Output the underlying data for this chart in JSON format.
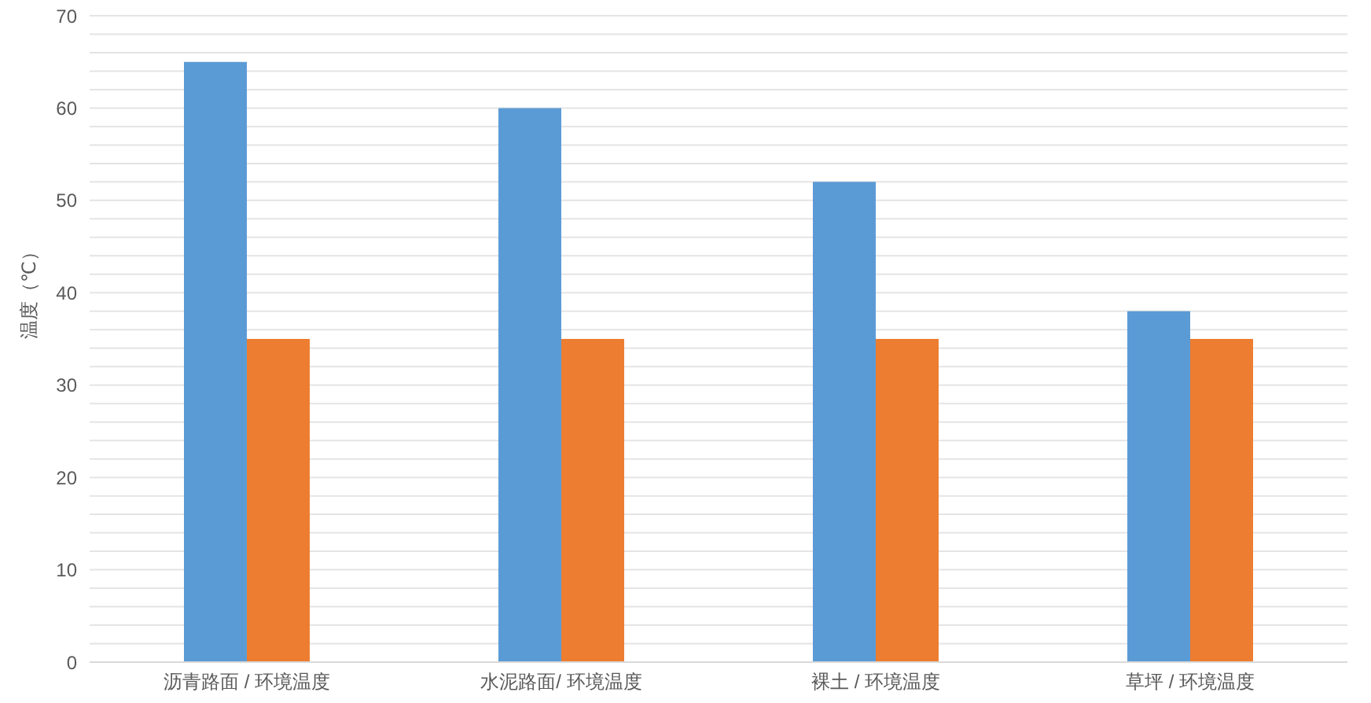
{
  "chart_data": {
    "type": "bar",
    "ylabel": "温度（℃）",
    "categories": [
      "沥青路面 / 环境温度",
      "水泥路面/ 环境温度",
      "裸土 / 环境温度",
      "草坪 / 环境温度"
    ],
    "series": [
      {
        "color": "#5b9bd5",
        "values": [
          65,
          60,
          52,
          38
        ]
      },
      {
        "color": "#ed7d31",
        "values": [
          35,
          35,
          35,
          35
        ]
      }
    ],
    "ylim": [
      0,
      70
    ],
    "yticks": [
      0,
      {
        "value": 2,
        "label": null
      },
      {
        "value": 4,
        "label": null
      },
      {
        "value": 6,
        "label": null
      },
      {
        "value": 8,
        "label": null
      },
      10,
      {
        "value": 12,
        "label": null
      },
      {
        "value": 14,
        "label": null
      },
      {
        "value": 16,
        "label": null
      },
      {
        "value": 18,
        "label": null
      },
      20,
      {
        "value": 22,
        "label": null
      },
      {
        "value": 24,
        "label": null
      },
      {
        "value": 26,
        "label": null
      },
      {
        "value": 28,
        "label": null
      },
      30,
      {
        "value": 32,
        "label": null
      },
      {
        "value": 34,
        "label": null
      },
      {
        "value": 36,
        "label": null
      },
      {
        "value": 38,
        "label": null
      },
      40,
      {
        "value": 42,
        "label": null
      },
      {
        "value": 44,
        "label": null
      },
      {
        "value": 46,
        "label": null
      },
      {
        "value": 48,
        "label": null
      },
      50,
      {
        "value": 52,
        "label": null
      },
      {
        "value": 54,
        "label": null
      },
      {
        "value": 56,
        "label": null
      },
      {
        "value": 58,
        "label": null
      },
      60,
      {
        "value": 62,
        "label": null
      },
      {
        "value": 64,
        "label": null
      },
      {
        "value": 66,
        "label": null
      },
      {
        "value": 68,
        "label": null
      },
      70
    ],
    "grid": "y"
  }
}
